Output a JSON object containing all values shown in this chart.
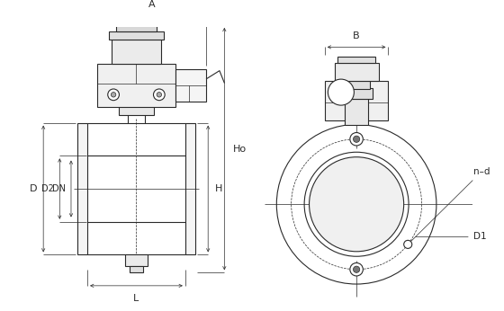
{
  "bg_color": "#ffffff",
  "line_color": "#2a2a2a",
  "fig_width": 5.6,
  "fig_height": 3.46,
  "dpi": 100,
  "labels": {
    "A": "A",
    "B": "B",
    "Ho": "Ho",
    "H": "H",
    "L": "L",
    "D": "D",
    "D2": "D2",
    "DN": "DN",
    "n_d": "n–d",
    "D1": "D1"
  }
}
